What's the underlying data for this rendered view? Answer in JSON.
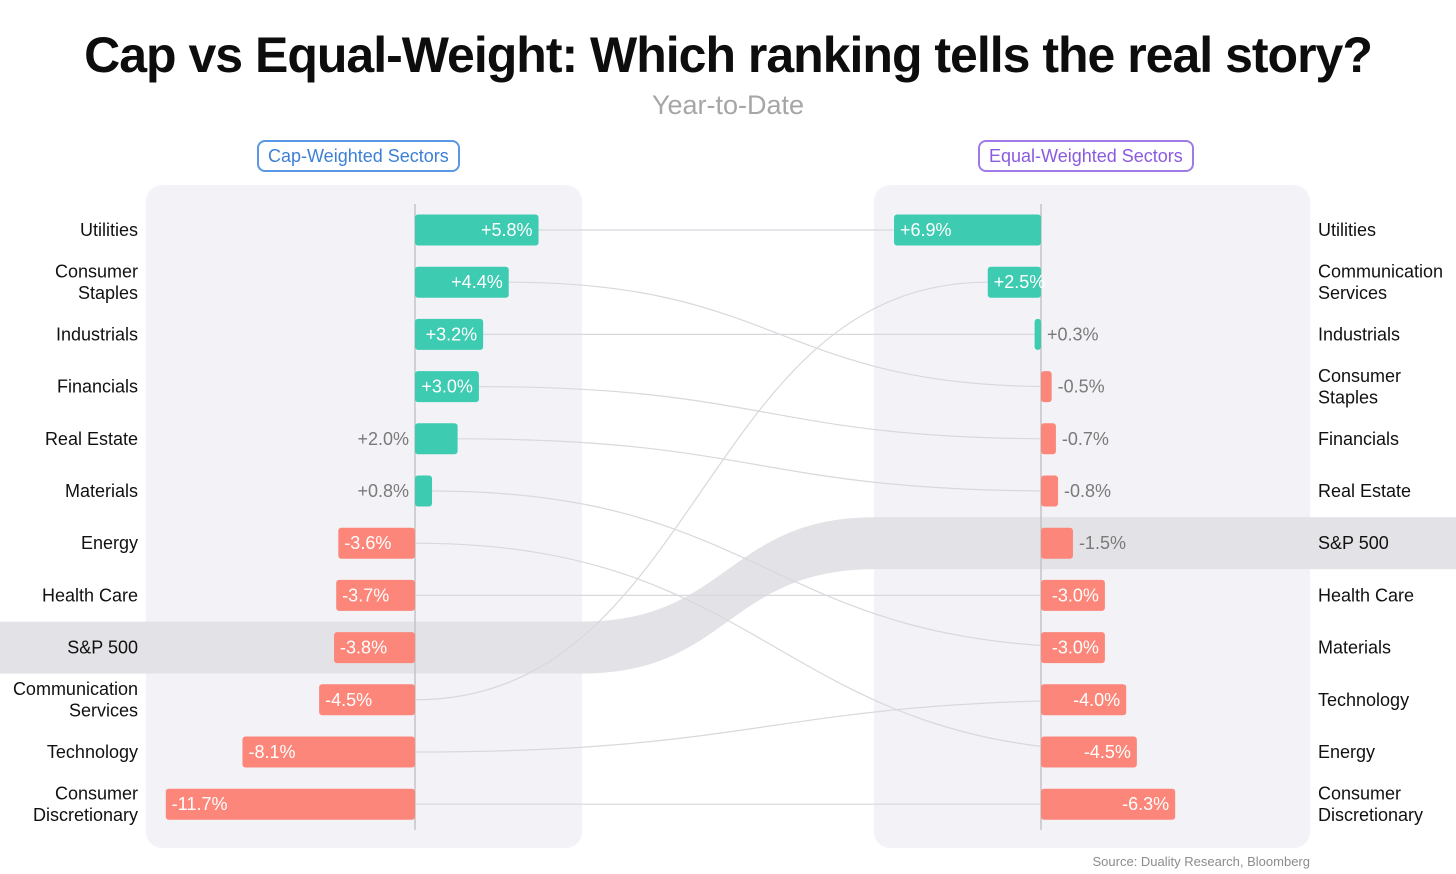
{
  "title": "Cap vs Equal-Weight: Which ranking tells the real story?",
  "subtitle": "Year-to-Date",
  "source": "Source: Duality Research, Bloomberg",
  "colors": {
    "positive": "#3dcbb1",
    "negative": "#fb8679",
    "panel": "#f3f3f7",
    "highlight": "#e3e3e7",
    "connector": "#d8d8dd",
    "axis": "#c4c4c8",
    "label_outside": "#7a7a7a"
  },
  "chart_data": {
    "type": "bar",
    "subtype": "slope-ranking / bump chart of two diverging bar charts",
    "title": "Cap vs Equal-Weight: Which ranking tells the real story?",
    "subtitle": "Year-to-Date",
    "unit": "%",
    "panels": [
      {
        "name": "Cap-Weighted Sectors",
        "orientation": "horizontal",
        "label_side": "left",
        "categories": [
          [
            "Utilities"
          ],
          [
            "Consumer",
            "Staples"
          ],
          [
            "Industrials"
          ],
          [
            "Financials"
          ],
          [
            "Real Estate"
          ],
          [
            "Materials"
          ],
          [
            "Energy"
          ],
          [
            "Health Care"
          ],
          [
            "S&P 500"
          ],
          [
            "Communication",
            "Services"
          ],
          [
            "Technology"
          ],
          [
            "Consumer",
            "Discretionary"
          ]
        ],
        "values": [
          5.8,
          4.4,
          3.2,
          3.0,
          2.0,
          0.8,
          -3.6,
          -3.7,
          -3.8,
          -4.5,
          -8.1,
          -11.7
        ],
        "value_labels": [
          "+5.8%",
          "+4.4%",
          "+3.2%",
          "+3.0%",
          "+2.0%",
          "+0.8%",
          "-3.6%",
          "-3.7%",
          "-3.8%",
          "-4.5%",
          "-8.1%",
          "-11.7%"
        ],
        "highlight": "S&P 500"
      },
      {
        "name": "Equal-Weighted Sectors",
        "orientation": "horizontal-reversed",
        "label_side": "right",
        "categories": [
          [
            "Utilities"
          ],
          [
            "Communication",
            "Services"
          ],
          [
            "Industrials"
          ],
          [
            "Consumer",
            "Staples"
          ],
          [
            "Financials"
          ],
          [
            "Real Estate"
          ],
          [
            "S&P 500"
          ],
          [
            "Health Care"
          ],
          [
            "Materials"
          ],
          [
            "Technology"
          ],
          [
            "Energy"
          ],
          [
            "Consumer",
            "Discretionary"
          ]
        ],
        "values": [
          6.9,
          2.5,
          0.3,
          -0.5,
          -0.7,
          -0.8,
          -1.5,
          -3.0,
          -3.0,
          -4.0,
          -4.5,
          -6.3
        ],
        "value_labels": [
          "+6.9%",
          "+2.5%",
          "+0.3%",
          "-0.5%",
          "-0.7%",
          "-0.8%",
          "-1.5%",
          "-3.0%",
          "-3.0%",
          "-4.0%",
          "-4.5%",
          "-6.3%"
        ],
        "highlight": "S&P 500"
      }
    ],
    "connectors": "each sector's row in the left ranking is linked by a curve to its row in the right ranking; S&P 500 linked by a wide grey band",
    "scale_percent_range": [
      -12,
      7
    ],
    "grid": false,
    "legend": "none"
  }
}
